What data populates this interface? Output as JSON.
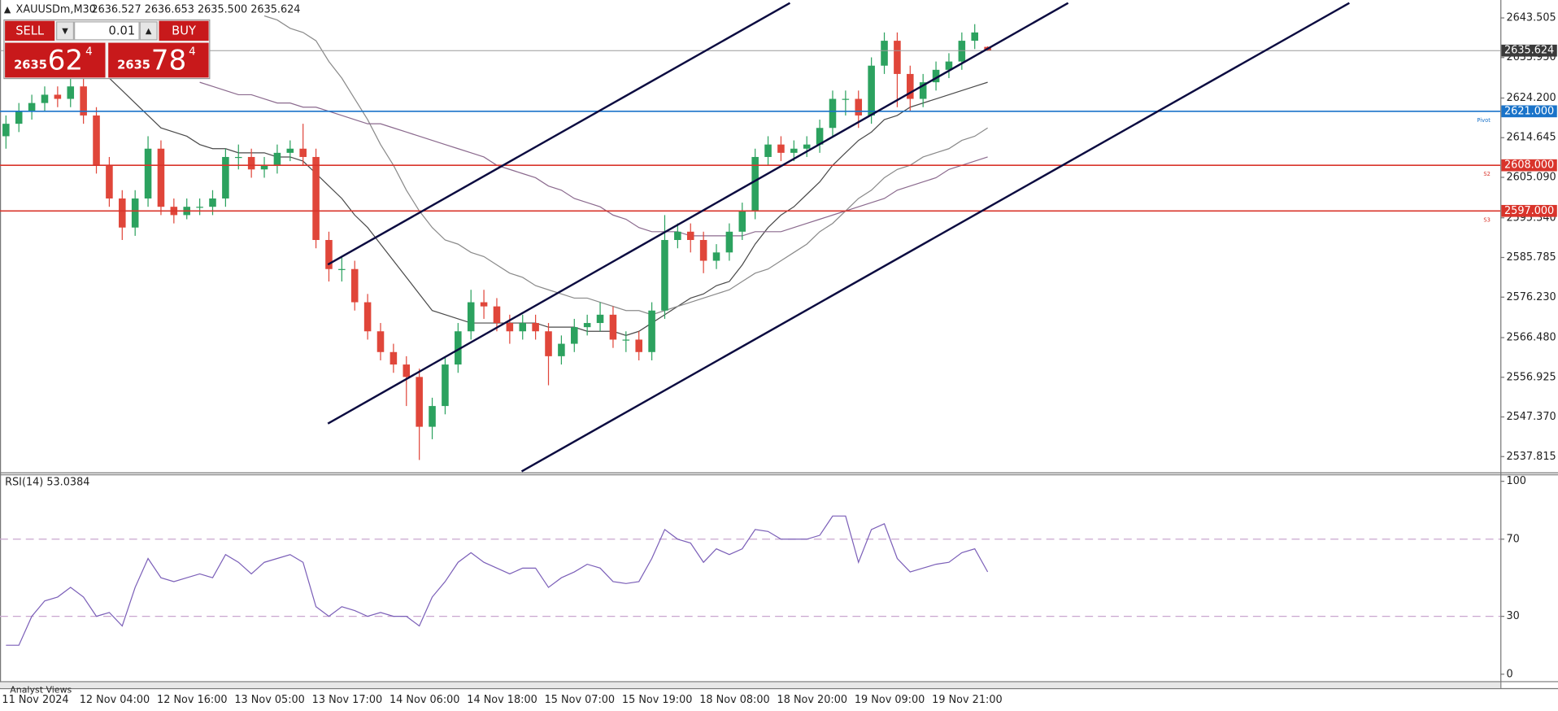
{
  "header": {
    "symbol": "XAUUSDm,M30",
    "ohlc": "2636.527 2636.653 2635.500 2635.624"
  },
  "trade_panel": {
    "sell": "SELL",
    "buy": "BUY",
    "volume": "0.01",
    "bid_big": "2635",
    "bid_main": "62",
    "bid_small": "4",
    "ask_big": "2635",
    "ask_main": "78",
    "ask_small": "4"
  },
  "bottom_tab": "Analyst Views",
  "chart_data": [
    {
      "type": "candlestick",
      "categories": [
        "11 Nov 2024",
        null,
        null,
        null,
        null,
        null,
        "12 Nov 04:00",
        null,
        null,
        null,
        null,
        null,
        "12 Nov 16:00",
        null,
        null,
        null,
        null,
        null,
        "13 Nov 05:00",
        null,
        null,
        null,
        null,
        null,
        "13 Nov 17:00",
        null,
        null,
        null,
        null,
        null,
        "14 Nov 06:00",
        null,
        null,
        null,
        null,
        null,
        "14 Nov 18:00",
        null,
        null,
        null,
        null,
        null,
        "15 Nov 07:00",
        null,
        null,
        null,
        null,
        null,
        "15 Nov 19:00",
        null,
        null,
        null,
        null,
        null,
        "18 Nov 08:00",
        null,
        null,
        null,
        null,
        null,
        "18 Nov 20:00",
        null,
        null,
        null,
        null,
        null,
        "19 Nov 09:00",
        null,
        null,
        null,
        null,
        null,
        "19 Nov 21:00",
        null,
        null,
        null,
        null
      ],
      "open": [
        2615,
        2618,
        2621,
        2623,
        2625,
        2624,
        2627,
        2620,
        2608,
        2600,
        2593,
        2600,
        2612,
        2598,
        2596,
        2598,
        2598,
        2600,
        2610,
        2610,
        2607,
        2608,
        2611,
        2612,
        2610,
        2590,
        2583,
        2583,
        2575,
        2568,
        2563,
        2560,
        2557,
        2545,
        2550,
        2560,
        2568,
        2575,
        2574,
        2570,
        2568,
        2570,
        2568,
        2562,
        2565,
        2569,
        2570,
        2572,
        2566,
        2566,
        2563,
        2573,
        2590,
        2592,
        2590,
        2585,
        2587,
        2592,
        2597,
        2610,
        2613,
        2611,
        2612,
        2613,
        2617,
        2624,
        2624,
        2620,
        2632,
        2638,
        2630,
        2624,
        2628,
        2631,
        2633,
        2638,
        2636.527
      ],
      "high": [
        2620,
        2623,
        2625,
        2627,
        2627,
        2629,
        2629,
        2622,
        2610,
        2602,
        2602,
        2615,
        2614,
        2600,
        2600,
        2600,
        2602,
        2612,
        2613,
        2612,
        2610,
        2613,
        2614,
        2618,
        2612,
        2592,
        2586,
        2585,
        2577,
        2570,
        2565,
        2562,
        2559,
        2552,
        2562,
        2570,
        2578,
        2578,
        2576,
        2572,
        2572,
        2572,
        2570,
        2567,
        2571,
        2572,
        2575,
        2574,
        2568,
        2568,
        2575,
        2596,
        2594,
        2594,
        2592,
        2589,
        2594,
        2599,
        2612,
        2615,
        2615,
        2614,
        2615,
        2619,
        2626,
        2626,
        2626,
        2634,
        2640,
        2640,
        2632,
        2630,
        2633,
        2635,
        2640,
        2642,
        2636.653
      ],
      "low": [
        2612,
        2616,
        2619,
        2621,
        2622,
        2622,
        2618,
        2606,
        2598,
        2590,
        2591,
        2598,
        2596,
        2594,
        2595,
        2596,
        2596,
        2598,
        2607,
        2605,
        2605,
        2606,
        2609,
        2608,
        2588,
        2580,
        2580,
        2573,
        2566,
        2561,
        2558,
        2550,
        2537,
        2542,
        2548,
        2558,
        2566,
        2571,
        2568,
        2565,
        2566,
        2566,
        2555,
        2560,
        2563,
        2567,
        2568,
        2564,
        2563,
        2561,
        2561,
        2571,
        2588,
        2587,
        2582,
        2583,
        2585,
        2590,
        2595,
        2608,
        2609,
        2609,
        2610,
        2611,
        2615,
        2620,
        2617,
        2618,
        2630,
        2622,
        2621,
        2622,
        2626,
        2629,
        2631,
        2636,
        2635.5
      ],
      "close": [
        2618,
        2621,
        2623,
        2625,
        2624,
        2627,
        2620,
        2608,
        2600,
        2593,
        2600,
        2612,
        2598,
        2596,
        2598,
        2598,
        2600,
        2610,
        2610,
        2607,
        2608,
        2611,
        2612,
        2610,
        2590,
        2583,
        2583,
        2575,
        2568,
        2563,
        2560,
        2557,
        2545,
        2550,
        2560,
        2568,
        2575,
        2574,
        2570,
        2568,
        2570,
        2568,
        2562,
        2565,
        2569,
        2570,
        2572,
        2566,
        2566,
        2563,
        2573,
        2590,
        2592,
        2590,
        2585,
        2587,
        2592,
        2597,
        2610,
        2613,
        2611,
        2612,
        2613,
        2617,
        2624,
        2624,
        2620,
        2632,
        2638,
        2630,
        2624,
        2628,
        2631,
        2633,
        2638,
        2640,
        2635.624
      ],
      "up_color": "#2ca25f",
      "down_color": "#e0463a",
      "series": [
        {
          "color": "#4a4a4a",
          "values": [
            null,
            null,
            null,
            null,
            null,
            null,
            null,
            null,
            2629,
            2626,
            2623,
            2620,
            2617,
            2616,
            2615,
            2613,
            2612,
            2612,
            2611,
            2611,
            2611,
            2610,
            2610,
            2609,
            2606,
            2603,
            2600,
            2596,
            2593,
            2589,
            2585,
            2581,
            2577,
            2573,
            2572,
            2571,
            2570,
            2570,
            2570,
            2570,
            2570,
            2570,
            2569,
            2569,
            2569,
            2568,
            2568,
            2568,
            2567,
            2568,
            2570,
            2572,
            2574,
            2576,
            2577,
            2579,
            2580,
            2584,
            2589,
            2593,
            2596,
            2598,
            2601,
            2604,
            2608,
            2611,
            2614,
            2616,
            2619,
            2620,
            2622,
            2623,
            2624,
            2625,
            2626,
            2627,
            2628
          ]
        },
        {
          "color": "#8a8a8a",
          "values": [
            null,
            null,
            null,
            null,
            null,
            null,
            null,
            null,
            null,
            null,
            null,
            null,
            null,
            null,
            null,
            null,
            null,
            null,
            null,
            null,
            2644,
            2643,
            2641,
            2640,
            2638,
            2633,
            2629,
            2624,
            2619,
            2613,
            2608,
            2602,
            2597,
            2593,
            2590,
            2589,
            2587,
            2586,
            2584,
            2582,
            2581,
            2579,
            2578,
            2577,
            2576,
            2576,
            2575,
            2574,
            2573,
            2573,
            2572,
            2573,
            2574,
            2575,
            2576,
            2577,
            2578,
            2580,
            2582,
            2583,
            2585,
            2587,
            2589,
            2592,
            2594,
            2597,
            2600,
            2602,
            2605,
            2607,
            2608,
            2610,
            2611,
            2612,
            2614,
            2615,
            2617
          ]
        },
        {
          "color": "#8b6a8e",
          "values": [
            null,
            null,
            null,
            null,
            null,
            null,
            null,
            null,
            null,
            null,
            null,
            null,
            null,
            null,
            null,
            2628,
            2627,
            2626,
            2625,
            2625,
            2624,
            2623,
            2623,
            2622,
            2622,
            2621,
            2620,
            2619,
            2618,
            2618,
            2617,
            2616,
            2615,
            2614,
            2613,
            2612,
            2611,
            2610,
            2608,
            2607,
            2606,
            2605,
            2603,
            2602,
            2600,
            2599,
            2598,
            2596,
            2595,
            2593,
            2592,
            2592,
            2592,
            2591,
            2591,
            2591,
            2591,
            2591,
            2592,
            2592,
            2592,
            2593,
            2594,
            2595,
            2596,
            2597,
            2598,
            2599,
            2600,
            2602,
            2603,
            2604,
            2605,
            2607,
            2608,
            2609,
            2610
          ]
        }
      ],
      "ylim": [
        2534.5,
        2647.1
      ],
      "yticks": [
        2537.815,
        {
          "value": 2547.37,
          "label": "2547.370"
        },
        2556.925,
        {
          "value": 2566.48,
          "label": "2566.480"
        },
        {
          "value": 2576.23,
          "label": "2576.230"
        },
        2585.785,
        {
          "value": 2595.34,
          "label": "2595.340"
        },
        {
          "value": 2605.09,
          "label": "2605.090"
        },
        2614.645,
        {
          "value": 2624.2,
          "label": "2624.200"
        },
        {
          "value": 2633.95,
          "label": "2633.950"
        },
        2643.505
      ],
      "levels": [
        {
          "value": 2635.624,
          "color": "#9a9a9a",
          "box": "#3a3a3a"
        },
        {
          "value": 2621,
          "label": "2621.000",
          "tag": "Pivot",
          "color": "#1a73c9",
          "box": "#1a73c9"
        },
        {
          "value": 2608,
          "label": "2608.000",
          "tag": "S2",
          "color": "#d9342b",
          "box": "#d9342b"
        },
        {
          "value": 2597,
          "label": "2597.000",
          "tag": "S3",
          "color": "#d9342b",
          "box": "#d9342b"
        }
      ]
    },
    {
      "type": "line",
      "title": "RSI(14) 53.0384",
      "series": [
        {
          "color": "#7b5fb8",
          "values": [
            15,
            15,
            30,
            38,
            40,
            45,
            40,
            30,
            32,
            25,
            45,
            60,
            50,
            48,
            50,
            52,
            50,
            62,
            58,
            52,
            58,
            60,
            62,
            58,
            35,
            30,
            35,
            33,
            30,
            32,
            30,
            30,
            25,
            40,
            48,
            58,
            63,
            58,
            55,
            52,
            55,
            55,
            45,
            50,
            53,
            57,
            55,
            48,
            47,
            48,
            60,
            75,
            70,
            68,
            58,
            65,
            62,
            65,
            75,
            74,
            70,
            70,
            70,
            72,
            82,
            82,
            58,
            75,
            78,
            60,
            53,
            55,
            57,
            58,
            63,
            65,
            53.0384
          ]
        }
      ],
      "ylim": [
        0,
        100
      ],
      "yticks": [
        0,
        30,
        70,
        100
      ],
      "dashed_color": "#c9a6cf"
    }
  ]
}
